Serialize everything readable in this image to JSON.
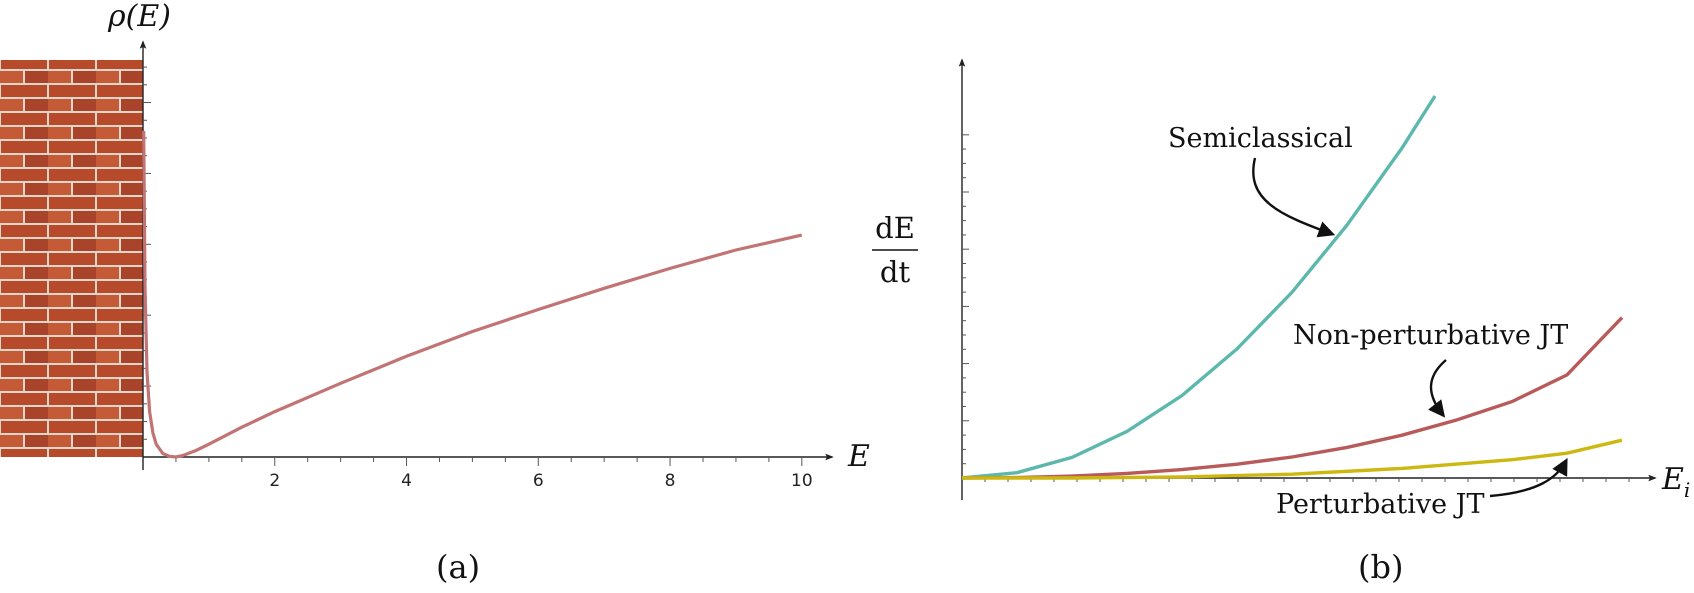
{
  "colors": {
    "curve_a": "#c27373",
    "semiclassical": "#5cb8ad",
    "non_perturbative": "#b85a5a",
    "perturbative": "#cdb812",
    "brick": "#b84a2c",
    "mortar": "#dcd6cb"
  },
  "chart_data": [
    {
      "panel": "a",
      "type": "line",
      "caption": "(a)",
      "xlabel": "E",
      "ylabel": "ρ(E)",
      "xlim": [
        0,
        10.2
      ],
      "ylim": [
        0,
        5.6
      ],
      "xticks": [
        2,
        4,
        6,
        8,
        10
      ],
      "wall_icon": "brick-wall",
      "series": [
        {
          "x": [
            0.01,
            0.03,
            0.06,
            0.1,
            0.15,
            0.2,
            0.3,
            0.4,
            0.5,
            0.6,
            0.8,
            1.0,
            1.5,
            2.0,
            3.0,
            4.0,
            5.0,
            6.0,
            7.0,
            8.0,
            9.0,
            10.0
          ],
          "values": [
            4.6,
            2.4,
            1.2,
            0.64,
            0.34,
            0.18,
            0.05,
            0.01,
            0.0,
            0.02,
            0.09,
            0.18,
            0.42,
            0.64,
            1.04,
            1.42,
            1.77,
            2.08,
            2.38,
            2.66,
            2.92,
            3.13
          ]
        }
      ]
    },
    {
      "panel": "b",
      "type": "line",
      "caption": "(b)",
      "xlabel": "E_i",
      "ylabel_numerator": "dE",
      "ylabel_denominator": "dt",
      "xlim": [
        0,
        1.2
      ],
      "ylim": [
        0,
        1.0
      ],
      "series": [
        {
          "name": "Semiclassical",
          "x": [
            0.0,
            0.1,
            0.2,
            0.3,
            0.4,
            0.5,
            0.6,
            0.7,
            0.8,
            0.86
          ],
          "values": [
            0.0,
            0.014,
            0.054,
            0.122,
            0.216,
            0.338,
            0.486,
            0.662,
            0.864,
            1.0
          ]
        },
        {
          "name": "Non-perturbative JT",
          "x": [
            0.0,
            0.1,
            0.2,
            0.3,
            0.4,
            0.5,
            0.6,
            0.7,
            0.8,
            0.9,
            1.0,
            1.1,
            1.2
          ],
          "values": [
            0.0,
            0.001,
            0.005,
            0.012,
            0.022,
            0.036,
            0.055,
            0.08,
            0.112,
            0.152,
            0.2,
            0.27,
            0.42
          ]
        },
        {
          "name": "Perturbative JT",
          "x": [
            0.0,
            0.2,
            0.4,
            0.6,
            0.8,
            1.0,
            1.1,
            1.2
          ],
          "values": [
            0.0,
            0.0,
            0.003,
            0.01,
            0.025,
            0.048,
            0.065,
            0.099
          ]
        }
      ],
      "annotations": [
        {
          "text": "Semiclassical",
          "points_to": "Semiclassical"
        },
        {
          "text": "Non-perturbative JT",
          "points_to": "Non-perturbative JT"
        },
        {
          "text": "Perturbative JT",
          "points_to": "Perturbative JT"
        }
      ]
    }
  ]
}
